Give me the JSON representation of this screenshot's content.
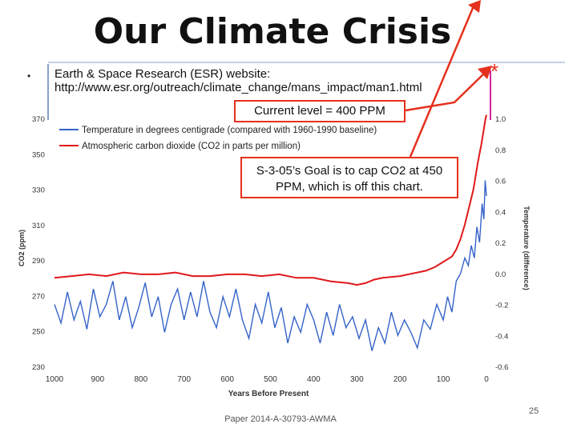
{
  "slide": {
    "title": "Our Climate Crisis",
    "bullet_symbol": "•",
    "bullet_lines": [
      "Earth & Space Research (ESR) website:",
      "http://www.esr.org/outreach/climate_change/mans_impact/man1.html"
    ],
    "current_level": "Current level = 400 PPM",
    "goal_lines": [
      "S-3-05’s Goal is to cap CO2 at 450",
      "PPM, which is off this chart."
    ],
    "asterisk": "*",
    "footer": "Paper 2014-A-30793-AWMA",
    "page_number": "25"
  },
  "colors": {
    "temperature": "#3563c9",
    "co2": "#e0181b",
    "arrow": "#e5311d",
    "accent_line": "#8aa0c8"
  },
  "chart_data": {
    "type": "line",
    "xlabel": "Years Before Present",
    "ylabel_left": "CO2 (ppm)",
    "ylabel_right": "Temperature (difference)",
    "x_ticks": [
      1000,
      900,
      800,
      700,
      600,
      500,
      400,
      300,
      200,
      100,
      0
    ],
    "x_reversed": true,
    "y_left_ticks": [
      230,
      250,
      270,
      290,
      310,
      330,
      350,
      370
    ],
    "y_left_range": [
      230,
      370
    ],
    "y_right_ticks": [
      "1.0",
      "0.8",
      "0.6",
      "0.4",
      "0.2",
      "0.0",
      "-0.2",
      "-0.4",
      "-0.6"
    ],
    "y_right_range": [
      -0.6,
      1.0
    ],
    "grid": false,
    "legend": "top-left",
    "series": [
      {
        "name": "Temperature in degrees centigrade (compared with 1960-1990 baseline)",
        "axis": "right",
        "points": [
          [
            1000,
            -0.2
          ],
          [
            985,
            -0.32
          ],
          [
            970,
            -0.12
          ],
          [
            955,
            -0.3
          ],
          [
            940,
            -0.18
          ],
          [
            925,
            -0.36
          ],
          [
            910,
            -0.1
          ],
          [
            895,
            -0.28
          ],
          [
            880,
            -0.2
          ],
          [
            865,
            -0.05
          ],
          [
            850,
            -0.3
          ],
          [
            835,
            -0.15
          ],
          [
            820,
            -0.35
          ],
          [
            805,
            -0.22
          ],
          [
            790,
            -0.06
          ],
          [
            775,
            -0.28
          ],
          [
            760,
            -0.15
          ],
          [
            745,
            -0.38
          ],
          [
            730,
            -0.2
          ],
          [
            715,
            -0.1
          ],
          [
            700,
            -0.3
          ],
          [
            685,
            -0.12
          ],
          [
            670,
            -0.28
          ],
          [
            655,
            -0.05
          ],
          [
            640,
            -0.25
          ],
          [
            625,
            -0.35
          ],
          [
            610,
            -0.15
          ],
          [
            595,
            -0.28
          ],
          [
            580,
            -0.1
          ],
          [
            565,
            -0.3
          ],
          [
            550,
            -0.42
          ],
          [
            535,
            -0.2
          ],
          [
            520,
            -0.32
          ],
          [
            505,
            -0.12
          ],
          [
            490,
            -0.35
          ],
          [
            475,
            -0.22
          ],
          [
            460,
            -0.45
          ],
          [
            445,
            -0.28
          ],
          [
            430,
            -0.38
          ],
          [
            415,
            -0.2
          ],
          [
            400,
            -0.3
          ],
          [
            385,
            -0.45
          ],
          [
            370,
            -0.25
          ],
          [
            355,
            -0.4
          ],
          [
            340,
            -0.2
          ],
          [
            325,
            -0.35
          ],
          [
            310,
            -0.28
          ],
          [
            295,
            -0.42
          ],
          [
            280,
            -0.3
          ],
          [
            265,
            -0.5
          ],
          [
            250,
            -0.35
          ],
          [
            235,
            -0.45
          ],
          [
            220,
            -0.25
          ],
          [
            205,
            -0.4
          ],
          [
            190,
            -0.3
          ],
          [
            175,
            -0.38
          ],
          [
            160,
            -0.48
          ],
          [
            145,
            -0.3
          ],
          [
            130,
            -0.36
          ],
          [
            115,
            -0.2
          ],
          [
            100,
            -0.3
          ],
          [
            90,
            -0.15
          ],
          [
            80,
            -0.25
          ],
          [
            70,
            -0.05
          ],
          [
            60,
            0.0
          ],
          [
            50,
            0.1
          ],
          [
            42,
            0.05
          ],
          [
            35,
            0.18
          ],
          [
            28,
            0.1
          ],
          [
            22,
            0.3
          ],
          [
            16,
            0.2
          ],
          [
            10,
            0.45
          ],
          [
            6,
            0.35
          ],
          [
            3,
            0.6
          ],
          [
            0,
            0.5
          ]
        ]
      },
      {
        "name": "Atmospheric carbon dioxide (CO2 in parts per million)",
        "axis": "left",
        "points": [
          [
            1000,
            280
          ],
          [
            960,
            281
          ],
          [
            920,
            282
          ],
          [
            880,
            281
          ],
          [
            840,
            283
          ],
          [
            800,
            282
          ],
          [
            760,
            282
          ],
          [
            720,
            283
          ],
          [
            680,
            281
          ],
          [
            640,
            281
          ],
          [
            600,
            282
          ],
          [
            560,
            282
          ],
          [
            520,
            281
          ],
          [
            480,
            282
          ],
          [
            440,
            280
          ],
          [
            400,
            280
          ],
          [
            360,
            278
          ],
          [
            320,
            277
          ],
          [
            300,
            276
          ],
          [
            280,
            277
          ],
          [
            260,
            279
          ],
          [
            240,
            280
          ],
          [
            200,
            281
          ],
          [
            160,
            283
          ],
          [
            140,
            284
          ],
          [
            120,
            286
          ],
          [
            100,
            289
          ],
          [
            80,
            292
          ],
          [
            70,
            296
          ],
          [
            60,
            302
          ],
          [
            50,
            310
          ],
          [
            40,
            320
          ],
          [
            30,
            330
          ],
          [
            20,
            345
          ],
          [
            12,
            355
          ],
          [
            6,
            364
          ],
          [
            2,
            370
          ],
          [
            0,
            372
          ]
        ]
      }
    ]
  }
}
